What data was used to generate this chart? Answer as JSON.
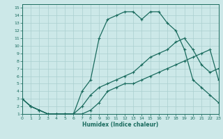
{
  "xlabel": "Humidex (Indice chaleur)",
  "bg_color": "#cce8e8",
  "line_color": "#1a6b5e",
  "grid_color": "#aacfcf",
  "line1_x": [
    0,
    1,
    2,
    3,
    4,
    5,
    6,
    7,
    8,
    9,
    10,
    11,
    12,
    13,
    14,
    15,
    16,
    17,
    18,
    19,
    20,
    21,
    22,
    23
  ],
  "line1_y": [
    3.0,
    2.0,
    1.5,
    1.0,
    1.0,
    1.0,
    1.0,
    1.0,
    1.5,
    2.5,
    4.0,
    4.5,
    5.0,
    5.0,
    5.5,
    6.0,
    6.5,
    7.0,
    7.5,
    8.0,
    8.5,
    9.0,
    9.5,
    5.5
  ],
  "line2_x": [
    0,
    1,
    2,
    3,
    4,
    5,
    6,
    7,
    8,
    9,
    10,
    11,
    12,
    13,
    14,
    15,
    16,
    17,
    18,
    19,
    20,
    21,
    22,
    23
  ],
  "line2_y": [
    3.0,
    2.0,
    1.5,
    1.0,
    1.0,
    1.0,
    1.0,
    2.0,
    3.5,
    4.5,
    5.0,
    5.5,
    6.0,
    6.5,
    7.5,
    8.5,
    9.0,
    9.5,
    10.5,
    11.0,
    9.5,
    7.5,
    6.5,
    7.0
  ],
  "line3_x": [
    0,
    1,
    2,
    3,
    4,
    5,
    6,
    7,
    8,
    9,
    10,
    11,
    12,
    13,
    14,
    15,
    16,
    17,
    18,
    19,
    20,
    21,
    22,
    23
  ],
  "line3_y": [
    3.0,
    2.0,
    1.5,
    1.0,
    1.0,
    1.0,
    1.0,
    4.0,
    5.5,
    11.0,
    13.5,
    14.0,
    14.5,
    14.5,
    13.5,
    14.5,
    14.5,
    13.0,
    12.0,
    9.5,
    5.5,
    4.5,
    3.5,
    2.5
  ],
  "xlim": [
    0,
    23
  ],
  "ylim": [
    1,
    15.5
  ],
  "xticks": [
    0,
    1,
    2,
    3,
    4,
    5,
    6,
    7,
    8,
    9,
    10,
    11,
    12,
    13,
    14,
    15,
    16,
    17,
    18,
    19,
    20,
    21,
    22,
    23
  ],
  "yticks": [
    1,
    2,
    3,
    4,
    5,
    6,
    7,
    8,
    9,
    10,
    11,
    12,
    13,
    14,
    15
  ]
}
